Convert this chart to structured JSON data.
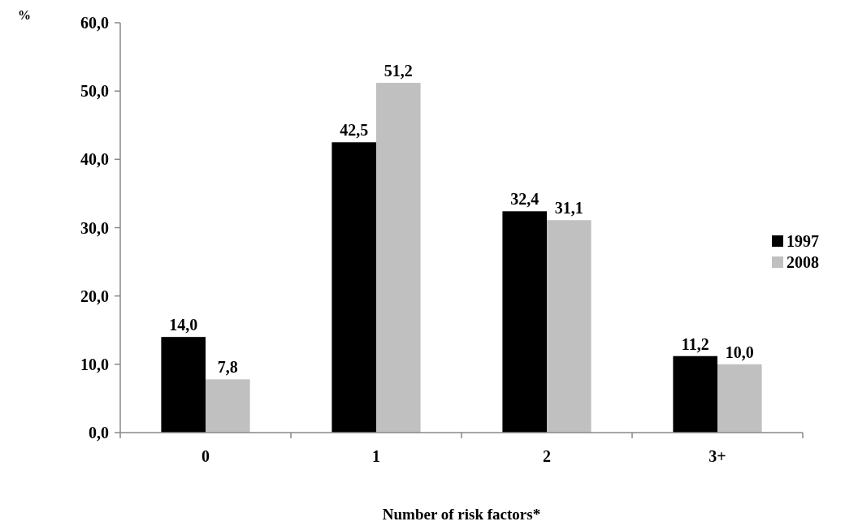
{
  "chart_data": {
    "type": "bar",
    "xlabel": "Number of risk factors*",
    "ylabel": "%",
    "categories": [
      "0",
      "1",
      "2",
      "3+"
    ],
    "series": [
      {
        "name": "1997",
        "color": "#000000",
        "values": [
          14.0,
          42.5,
          32.4,
          11.2
        ],
        "value_labels": [
          "14,0",
          "42,5",
          "32,4",
          "11,2"
        ]
      },
      {
        "name": "2008",
        "color": "#c0c0c0",
        "values": [
          7.8,
          51.2,
          31.1,
          10.0
        ],
        "value_labels": [
          "7,8",
          "51,2",
          "31,1",
          "10,0"
        ]
      }
    ],
    "ylim": [
      0,
      60
    ],
    "yticks": [
      {
        "value": 0,
        "label": "0,0"
      },
      {
        "value": 10,
        "label": "10,0"
      },
      {
        "value": 20,
        "label": "20,0"
      },
      {
        "value": 30,
        "label": "30,0"
      },
      {
        "value": 40,
        "label": "40,0"
      },
      {
        "value": 50,
        "label": "50,0"
      },
      {
        "value": 60,
        "label": "60,0"
      }
    ],
    "grid": false,
    "legend": "right"
  }
}
